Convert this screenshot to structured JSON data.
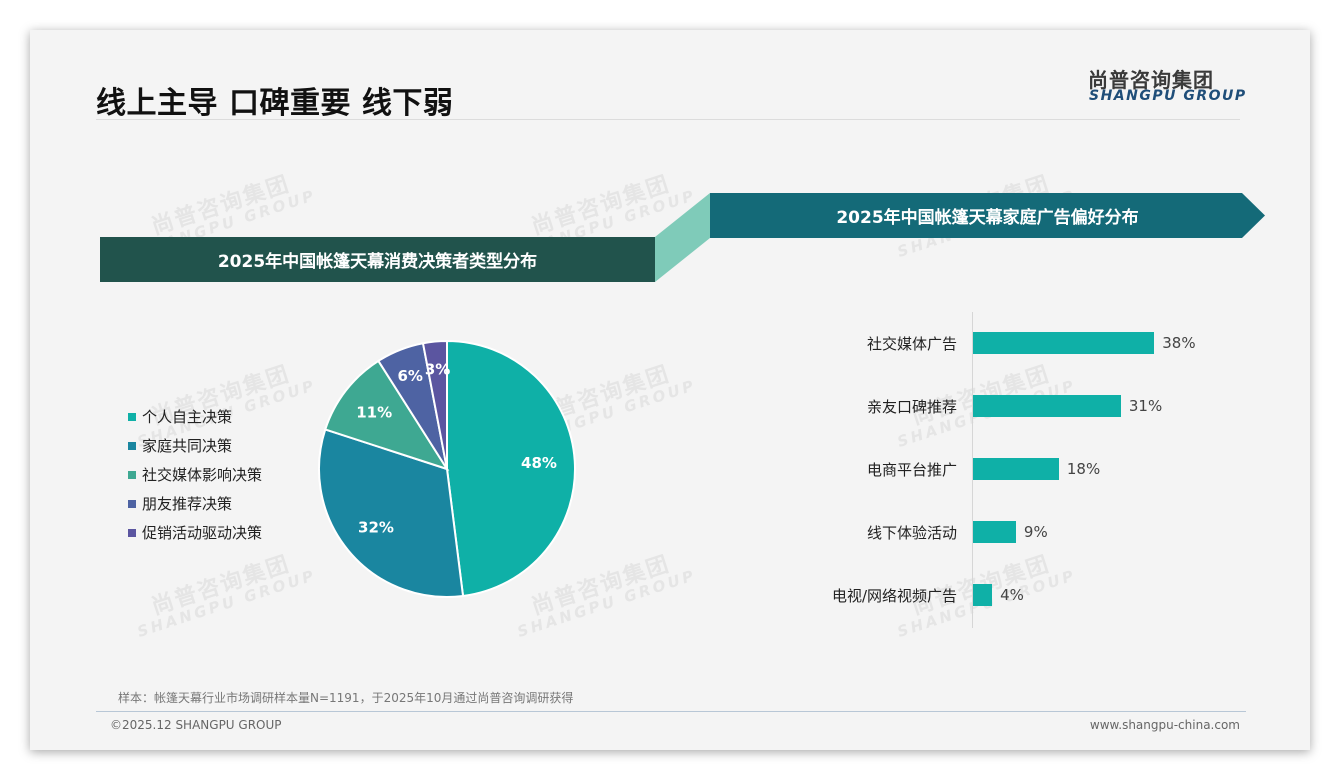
{
  "header": {
    "title": "线上主导 口碑重要 线下弱",
    "logo_cn": "尚普咨询集团",
    "logo_en": "SHANGPU GROUP"
  },
  "watermark": {
    "cn": "尚普咨询集团",
    "en": "SHANGPU GROUP"
  },
  "colors": {
    "banner_left": "#21534c",
    "banner_right": "#146a78",
    "connector": "#7fcbb9",
    "bar": "#0fb0a7"
  },
  "chart_data": [
    {
      "type": "pie",
      "title": "2025年中国帐篷天幕消费决策者类型分布",
      "categories": [
        "个人自主决策",
        "家庭共同决策",
        "社交媒体影响决策",
        "朋友推荐决策",
        "促销活动驱动决策"
      ],
      "values": [
        48,
        32,
        11,
        6,
        3
      ],
      "labels": [
        "48%",
        "32%",
        "11%",
        "6%",
        "3%"
      ],
      "colors": [
        "#0fb0a7",
        "#1a86a0",
        "#3ea892",
        "#4e63a3",
        "#5b55a0"
      ],
      "legend_position": "left"
    },
    {
      "type": "bar",
      "orientation": "horizontal",
      "title": "2025年中国帐篷天幕家庭广告偏好分布",
      "categories": [
        "社交媒体广告",
        "亲友口碑推荐",
        "电商平台推广",
        "线下体验活动",
        "电视/网络视频广告"
      ],
      "values": [
        38,
        31,
        18,
        9,
        4
      ],
      "labels": [
        "38%",
        "31%",
        "18%",
        "9%",
        "4%"
      ],
      "color": "#0fb0a7",
      "xlim": [
        0,
        40
      ],
      "grid": false
    }
  ],
  "footer": {
    "note": "样本：帐篷天幕行业市场调研样本量N=1191，于2025年10月通过尚普咨询调研获得",
    "copyright": "©2025.12 SHANGPU GROUP",
    "site": "www.shangpu-china.com"
  }
}
